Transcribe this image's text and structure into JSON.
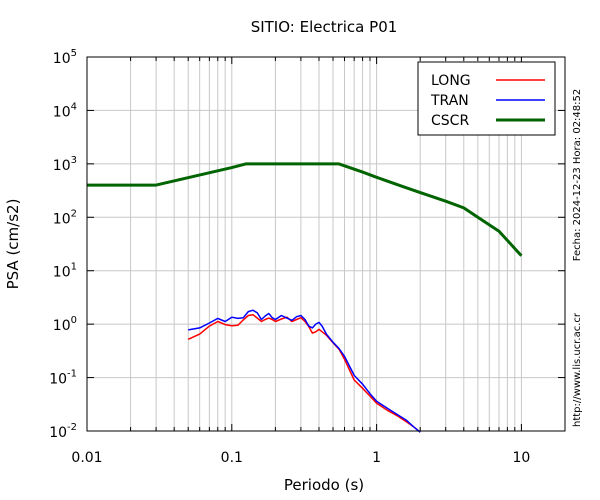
{
  "chart_data": {
    "type": "line",
    "title": "SITIO: Electrica P01",
    "xlabel": "Periodo (s)",
    "ylabel": "PSA (cm/s2)",
    "xscale": "log",
    "yscale": "log",
    "xlim": [
      0.01,
      20
    ],
    "ylim": [
      0.01,
      100000
    ],
    "x_ticks": [
      {
        "value": 0.01,
        "label": "0.01"
      },
      {
        "value": 0.1,
        "label": "0.1"
      },
      {
        "value": 1,
        "label": "1"
      },
      {
        "value": 10,
        "label": "10"
      }
    ],
    "y_ticks": [
      {
        "value": 0.01,
        "base": "10",
        "exp": "-2"
      },
      {
        "value": 0.1,
        "base": "10",
        "exp": "-1"
      },
      {
        "value": 1,
        "base": "10",
        "exp": "0"
      },
      {
        "value": 10,
        "base": "10",
        "exp": "1"
      },
      {
        "value": 100,
        "base": "10",
        "exp": "2"
      },
      {
        "value": 1000,
        "base": "10",
        "exp": "3"
      },
      {
        "value": 10000,
        "base": "10",
        "exp": "4"
      },
      {
        "value": 100000,
        "base": "10",
        "exp": "5"
      }
    ],
    "grid": true,
    "legend_position": "top-right",
    "series": [
      {
        "name": "LONG",
        "color": "#ff0000",
        "x": [
          0.05,
          0.06,
          0.07,
          0.08,
          0.09,
          0.1,
          0.11,
          0.12,
          0.13,
          0.14,
          0.15,
          0.16,
          0.17,
          0.18,
          0.19,
          0.2,
          0.22,
          0.24,
          0.26,
          0.28,
          0.3,
          0.32,
          0.34,
          0.36,
          0.38,
          0.4,
          0.45,
          0.5,
          0.55,
          0.6,
          0.7,
          0.8,
          0.9,
          1.0,
          1.2,
          1.4,
          1.6,
          1.8,
          2.0
        ],
        "y": [
          0.52,
          0.65,
          0.92,
          1.12,
          0.98,
          0.93,
          0.95,
          1.2,
          1.45,
          1.5,
          1.3,
          1.12,
          1.22,
          1.3,
          1.22,
          1.12,
          1.25,
          1.35,
          1.12,
          1.22,
          1.32,
          1.12,
          0.9,
          0.68,
          0.72,
          0.8,
          0.62,
          0.45,
          0.34,
          0.22,
          0.09,
          0.063,
          0.045,
          0.033,
          0.024,
          0.019,
          0.015,
          0.012,
          0.0095
        ]
      },
      {
        "name": "TRAN",
        "color": "#0000ff",
        "x": [
          0.05,
          0.06,
          0.07,
          0.08,
          0.09,
          0.1,
          0.11,
          0.12,
          0.13,
          0.14,
          0.15,
          0.16,
          0.17,
          0.18,
          0.19,
          0.2,
          0.22,
          0.24,
          0.26,
          0.28,
          0.3,
          0.32,
          0.34,
          0.36,
          0.38,
          0.4,
          0.42,
          0.45,
          0.5,
          0.55,
          0.6,
          0.7,
          0.8,
          0.9,
          1.0,
          1.2,
          1.4,
          1.6,
          1.8,
          2.0
        ],
        "y": [
          0.78,
          0.85,
          1.05,
          1.28,
          1.12,
          1.35,
          1.28,
          1.32,
          1.72,
          1.82,
          1.62,
          1.22,
          1.42,
          1.58,
          1.32,
          1.22,
          1.45,
          1.3,
          1.18,
          1.38,
          1.45,
          1.22,
          0.92,
          0.85,
          1.0,
          1.08,
          0.92,
          0.65,
          0.46,
          0.35,
          0.25,
          0.11,
          0.075,
          0.05,
          0.036,
          0.026,
          0.02,
          0.016,
          0.012,
          0.0095
        ]
      },
      {
        "name": "CSCR",
        "color": "#006400",
        "x": [
          0.01,
          0.03,
          0.1,
          0.125,
          0.55,
          0.8,
          1.0,
          1.5,
          2.0,
          3.0,
          4.0,
          5.0,
          7.0,
          10.0
        ],
        "y": [
          400,
          400,
          850,
          1000,
          1000,
          700,
          560,
          380,
          290,
          200,
          150,
          100,
          55,
          19
        ]
      }
    ],
    "side_text_right": "Fecha: 2024-12-23  Hora: 02:48:52",
    "side_text_left": "http://www.lis.ucr.ac.cr"
  }
}
